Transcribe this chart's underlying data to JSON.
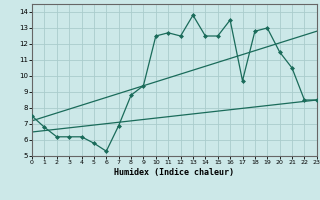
{
  "title": "",
  "xlabel": "Humidex (Indice chaleur)",
  "bg_color": "#cce8e8",
  "grid_color": "#aacccc",
  "line_color": "#1a6b5a",
  "xlim": [
    0,
    23
  ],
  "ylim": [
    5,
    14.5
  ],
  "xticks": [
    0,
    1,
    2,
    3,
    4,
    5,
    6,
    7,
    8,
    9,
    10,
    11,
    12,
    13,
    14,
    15,
    16,
    17,
    18,
    19,
    20,
    21,
    22,
    23
  ],
  "yticks": [
    5,
    6,
    7,
    8,
    9,
    10,
    11,
    12,
    13,
    14
  ],
  "line1_x": [
    0,
    1,
    2,
    3,
    4,
    5,
    6,
    7,
    8,
    9,
    10,
    11,
    12,
    13,
    14,
    15,
    16,
    17,
    18,
    19,
    20,
    21,
    22,
    23
  ],
  "line1_y": [
    7.5,
    6.8,
    6.2,
    6.2,
    6.2,
    5.8,
    5.3,
    6.9,
    8.8,
    9.4,
    12.5,
    12.7,
    12.5,
    13.8,
    12.5,
    12.5,
    13.5,
    9.7,
    12.8,
    13.0,
    11.5,
    10.5,
    8.5,
    8.5
  ],
  "line2_x": [
    0,
    23
  ],
  "line2_y": [
    6.5,
    8.5
  ],
  "line3_x": [
    0,
    23
  ],
  "line3_y": [
    7.2,
    12.8
  ]
}
